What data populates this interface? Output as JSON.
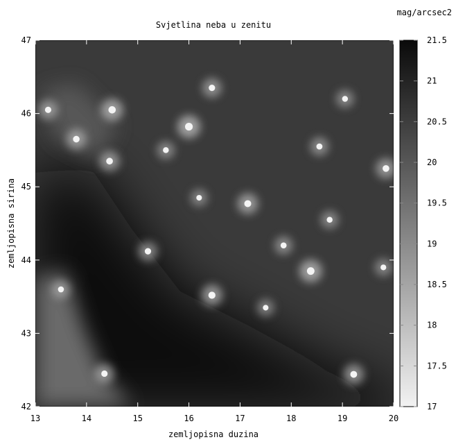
{
  "chart_data": {
    "type": "heatmap",
    "title": "Svjetlina neba u zenitu",
    "xlabel": "zemljopisna duzina",
    "ylabel": "zemljopisna sirina",
    "xlim": [
      13,
      20
    ],
    "ylim": [
      42,
      47
    ],
    "xticks": [
      "13",
      "14",
      "15",
      "16",
      "17",
      "18",
      "19",
      "20"
    ],
    "yticks": [
      "42",
      "43",
      "44",
      "45",
      "46",
      "47"
    ],
    "colorbar": {
      "label": "mag/arcsec2",
      "range": [
        17,
        21.5
      ],
      "ticks": [
        "17",
        "17.5",
        "18",
        "18.5",
        "19",
        "19.5",
        "20",
        "20.5",
        "21",
        "21.5"
      ],
      "colormap": "grayscale, bright = low magnitude (brighter sky), dark = high magnitude"
    },
    "colors": {
      "dark": "#0a0a0a",
      "light": "#f2f2f2",
      "background": "#ffffff"
    },
    "grid": false,
    "sources": [
      {
        "lon": 13.25,
        "lat": 46.05,
        "mag": 18.6
      },
      {
        "lon": 13.8,
        "lat": 45.65,
        "mag": 18.4
      },
      {
        "lon": 14.5,
        "lat": 46.05,
        "mag": 17.8
      },
      {
        "lon": 14.45,
        "lat": 45.35,
        "mag": 18.3
      },
      {
        "lon": 16.0,
        "lat": 45.82,
        "mag": 17.5
      },
      {
        "lon": 16.45,
        "lat": 46.35,
        "mag": 18.6
      },
      {
        "lon": 15.55,
        "lat": 45.5,
        "mag": 19.0
      },
      {
        "lon": 17.15,
        "lat": 44.77,
        "mag": 18.1
      },
      {
        "lon": 18.38,
        "lat": 43.85,
        "mag": 17.6
      },
      {
        "lon": 16.45,
        "lat": 43.52,
        "mag": 18.0
      },
      {
        "lon": 15.2,
        "lat": 44.12,
        "mag": 18.6
      },
      {
        "lon": 19.85,
        "lat": 45.25,
        "mag": 18.3
      },
      {
        "lon": 19.22,
        "lat": 42.44,
        "mag": 18.2
      },
      {
        "lon": 18.55,
        "lat": 45.55,
        "mag": 18.8
      },
      {
        "lon": 17.85,
        "lat": 44.2,
        "mag": 18.9
      },
      {
        "lon": 14.35,
        "lat": 42.45,
        "mag": 18.6
      },
      {
        "lon": 13.5,
        "lat": 43.6,
        "mag": 18.9
      },
      {
        "lon": 18.75,
        "lat": 44.55,
        "mag": 19.0
      },
      {
        "lon": 19.8,
        "lat": 43.9,
        "mag": 19.1
      },
      {
        "lon": 17.5,
        "lat": 43.35,
        "mag": 19.2
      },
      {
        "lon": 16.2,
        "lat": 44.85,
        "mag": 19.2
      },
      {
        "lon": 19.05,
        "lat": 46.2,
        "mag": 19.0
      }
    ]
  }
}
